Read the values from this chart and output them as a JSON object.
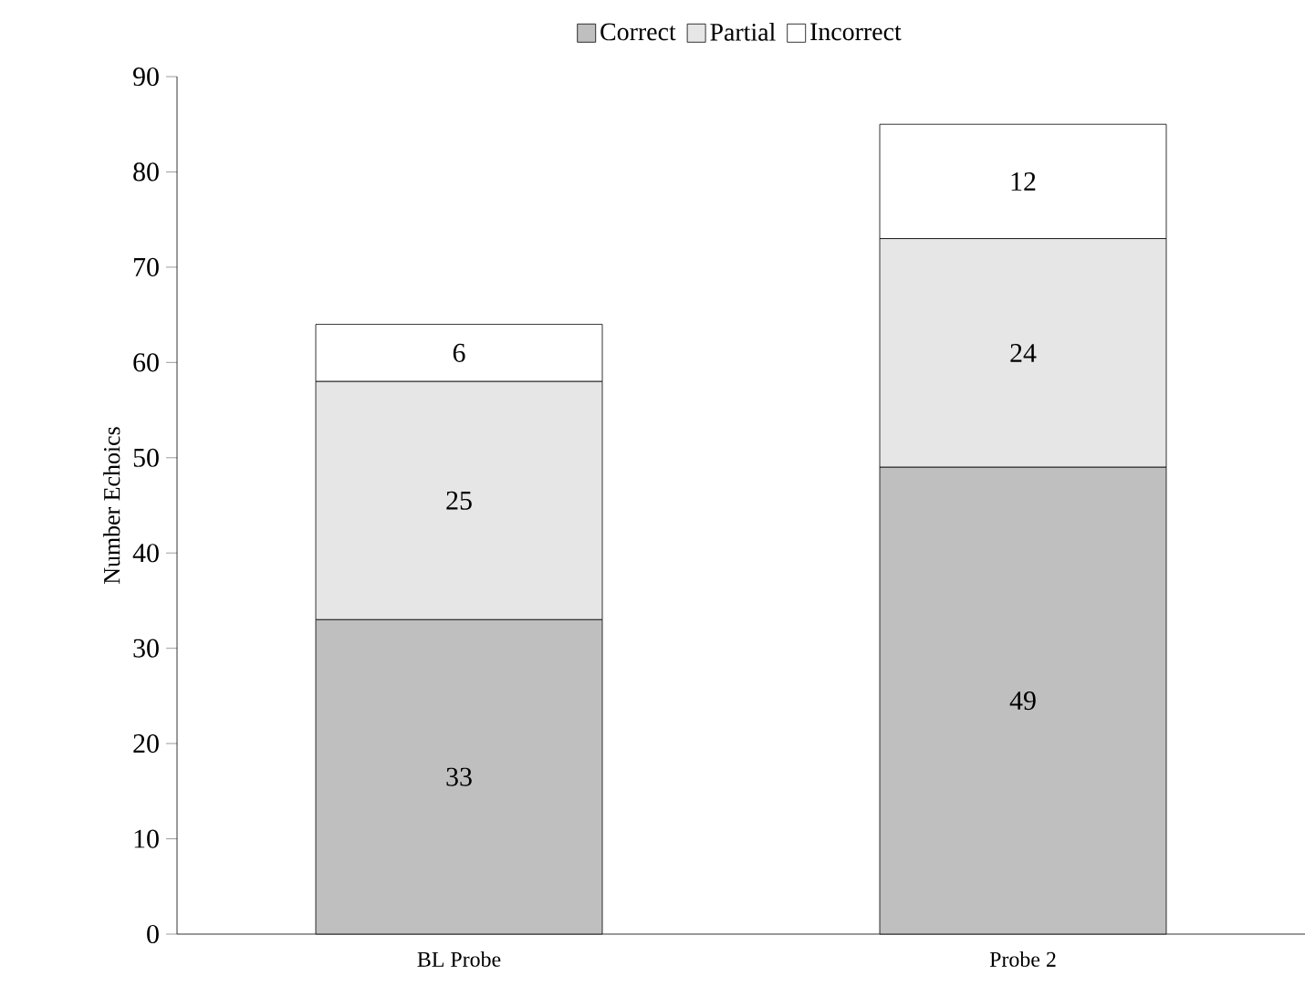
{
  "chart_data": {
    "type": "bar",
    "stacked": true,
    "ylabel": "Number Echoics",
    "categories": [
      "BL Probe",
      "Probe 2"
    ],
    "series": [
      {
        "name": "Correct",
        "color": "#bfbfbf",
        "values": [
          33,
          49
        ]
      },
      {
        "name": "Partial",
        "color": "#e6e6e6",
        "values": [
          25,
          24
        ]
      },
      {
        "name": "Incorrect",
        "color": "#ffffff",
        "values": [
          6,
          12
        ]
      }
    ],
    "ylim": [
      0,
      90
    ],
    "yticks": [
      0,
      10,
      20,
      30,
      40,
      50,
      60,
      70,
      80,
      90
    ],
    "data_labels": true,
    "legend": "top",
    "grid": false
  }
}
